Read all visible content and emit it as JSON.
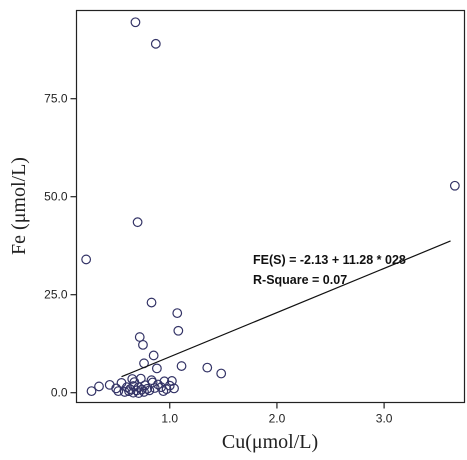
{
  "chart_data": {
    "type": "scatter",
    "xlabel": "Cu(μmol/L)",
    "ylabel": "Fe (μmol/L)",
    "xlim": [
      0.13,
      3.75
    ],
    "ylim": [
      -2.5,
      97.5
    ],
    "xticks": [
      1.0,
      2.0,
      3.0
    ],
    "xtick_labels": [
      "1.0",
      "2.0",
      "3.0"
    ],
    "yticks": [
      0.0,
      25.0,
      50.0,
      75.0
    ],
    "ytick_labels": [
      "0.0",
      "25.0",
      "50.0",
      "75.0"
    ],
    "grid": false,
    "legend": "none",
    "annotations": [
      "FE(S) = -2.13 + 11.28 * 028",
      "R-Square = 0.07"
    ],
    "fit_line": {
      "intercept": -2.13,
      "slope": 11.28,
      "x_range": [
        0.55,
        3.62
      ]
    },
    "marker_color": "#333366",
    "points": [
      [
        0.68,
        94.5
      ],
      [
        0.87,
        89.0
      ],
      [
        0.7,
        43.5
      ],
      [
        3.66,
        52.8
      ],
      [
        0.22,
        34.0
      ],
      [
        0.83,
        23.0
      ],
      [
        1.07,
        20.3
      ],
      [
        1.08,
        15.8
      ],
      [
        0.72,
        14.2
      ],
      [
        0.75,
        12.2
      ],
      [
        0.76,
        7.5
      ],
      [
        0.85,
        9.5
      ],
      [
        0.88,
        6.2
      ],
      [
        1.11,
        6.8
      ],
      [
        1.35,
        6.4
      ],
      [
        1.48,
        4.9
      ],
      [
        0.65,
        3.5
      ],
      [
        0.73,
        3.6
      ],
      [
        0.83,
        3.2
      ],
      [
        0.95,
        2.9
      ],
      [
        1.02,
        3.0
      ],
      [
        0.34,
        1.6
      ],
      [
        0.44,
        2.0
      ],
      [
        0.5,
        1.1
      ],
      [
        0.55,
        2.5
      ],
      [
        0.6,
        1.4
      ],
      [
        0.63,
        0.9
      ],
      [
        0.66,
        1.7
      ],
      [
        0.69,
        0.6
      ],
      [
        0.71,
        1.4
      ],
      [
        0.74,
        0.8
      ],
      [
        0.77,
        1.9
      ],
      [
        0.79,
        1.0
      ],
      [
        0.81,
        0.6
      ],
      [
        0.86,
        1.2
      ],
      [
        0.89,
        2.1
      ],
      [
        0.92,
        1.4
      ],
      [
        0.97,
        0.9
      ],
      [
        1.0,
        1.8
      ],
      [
        1.04,
        1.1
      ],
      [
        0.58,
        0.2
      ],
      [
        0.62,
        0.4
      ],
      [
        0.66,
        0.0
      ],
      [
        0.71,
        -0.1
      ],
      [
        0.76,
        0.2
      ],
      [
        0.27,
        0.4
      ],
      [
        0.52,
        0.4
      ],
      [
        0.94,
        0.4
      ],
      [
        0.84,
        2.6
      ],
      [
        0.67,
        2.7
      ]
    ]
  }
}
